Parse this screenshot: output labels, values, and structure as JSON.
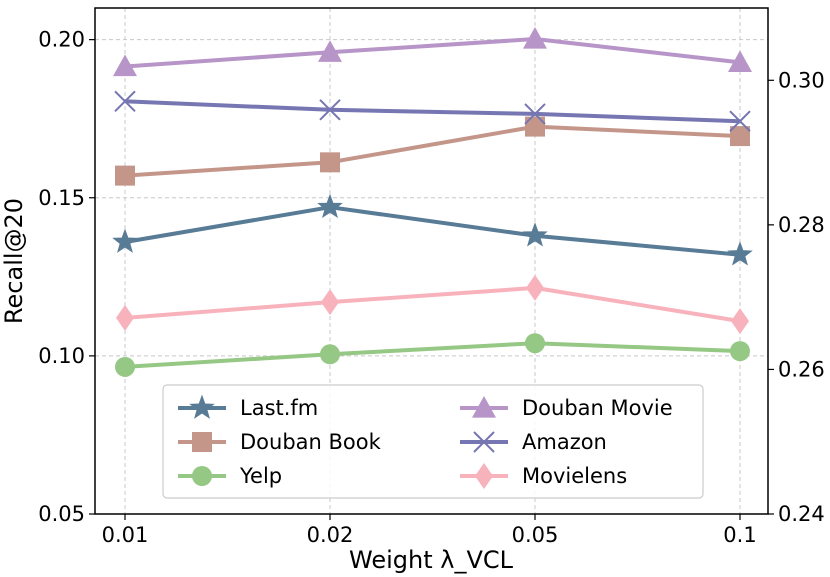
{
  "chart_data": {
    "type": "line",
    "title": "",
    "xlabel": "Weight λ_VCL",
    "ylabel": "Recall@20",
    "categories": [
      "0.01",
      "0.02",
      "0.05",
      "0.1"
    ],
    "ylim": [
      0.05,
      0.21
    ],
    "y2lim": [
      0.24,
      0.31
    ],
    "yticks": [
      "0.05",
      "0.10",
      "0.15",
      "0.20"
    ],
    "y2ticks": [
      "0.24",
      "0.26",
      "0.28",
      "0.30"
    ],
    "grid": true,
    "legend_position": "bottom-center",
    "series": [
      {
        "name": "Last.fm",
        "axis": "left",
        "marker": "star",
        "color": "#587b96",
        "values": [
          0.136,
          0.147,
          0.138,
          0.132
        ]
      },
      {
        "name": "Douban Movie",
        "axis": "left",
        "marker": "triangle",
        "color": "#b895c8",
        "values": [
          0.1915,
          0.196,
          0.2002,
          0.1928
        ]
      },
      {
        "name": "Douban Book",
        "axis": "left",
        "marker": "square",
        "color": "#c4968a",
        "values": [
          0.157,
          0.1612,
          0.1725,
          0.1695
        ]
      },
      {
        "name": "Amazon",
        "axis": "left",
        "marker": "x",
        "color": "#7676b2",
        "values": [
          0.1805,
          0.1778,
          0.1765,
          0.1742
        ]
      },
      {
        "name": "Yelp",
        "axis": "left",
        "marker": "circle",
        "color": "#95c785",
        "values": [
          0.0965,
          0.1005,
          0.104,
          0.1015
        ]
      },
      {
        "name": "Movielens",
        "axis": "left",
        "marker": "diamond",
        "color": "#f7b2bc",
        "values": [
          0.112,
          0.117,
          0.1215,
          0.111
        ]
      }
    ]
  }
}
